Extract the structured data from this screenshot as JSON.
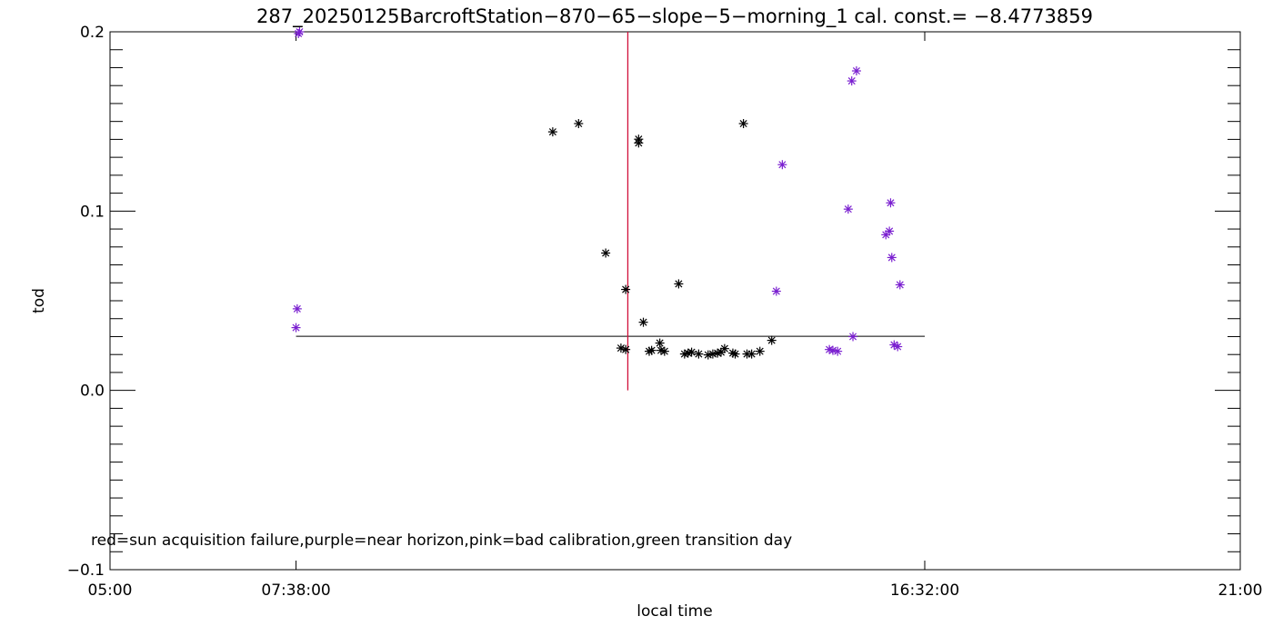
{
  "chart_data": {
    "type": "scatter",
    "title": "287_20250125BarcroftStation−870−65−slope−5−morning_1 cal. const.= −8.4773859",
    "xlabel": "local time",
    "ylabel": "tod",
    "x_range_hours": [
      5.0,
      21.0
    ],
    "ylim": [
      -0.1,
      0.2
    ],
    "x_ticks": [
      {
        "hours": 5.0,
        "label": "05:00"
      },
      {
        "hours": 7.6333,
        "label": "07:38:00"
      },
      {
        "hours": 16.5333,
        "label": "16:32:00"
      },
      {
        "hours": 21.0,
        "label": "21:00"
      }
    ],
    "y_ticks": [
      {
        "value": -0.1,
        "label": "−0.1"
      },
      {
        "value": 0.0,
        "label": "0.0"
      },
      {
        "value": 0.1,
        "label": "0.1"
      },
      {
        "value": 0.2,
        "label": "0.2"
      }
    ],
    "y_minor_step": 0.01,
    "note": "red=sun acquisition failure,purple=near horizon,pink=bad calibration,green transition day",
    "colors": {
      "normal": "#000000",
      "near_horizon": "#7a1fd0",
      "sun_failure": "#d0103a",
      "frame": "#000000"
    },
    "reference_line": {
      "y": 0.0302,
      "x_start_hours": 7.6333,
      "x_end_hours": 16.5333
    },
    "vertical_marker": {
      "x_hours": 12.33,
      "y_from": 0.0,
      "y_to": 0.2,
      "color": "#d0103a"
    },
    "points": [
      {
        "x": 7.667,
        "y": 0.199,
        "flag": "near_horizon"
      },
      {
        "x": 7.683,
        "y": 0.2,
        "flag": "near_horizon"
      },
      {
        "x": 7.65,
        "y": 0.0455,
        "flag": "near_horizon"
      },
      {
        "x": 7.633,
        "y": 0.035,
        "flag": "near_horizon"
      },
      {
        "x": 11.267,
        "y": 0.1442,
        "flag": "normal"
      },
      {
        "x": 11.633,
        "y": 0.1488,
        "flag": "normal"
      },
      {
        "x": 12.017,
        "y": 0.0766,
        "flag": "normal"
      },
      {
        "x": 12.233,
        "y": 0.0236,
        "flag": "normal"
      },
      {
        "x": 12.3,
        "y": 0.0228,
        "flag": "normal"
      },
      {
        "x": 12.3,
        "y": 0.0563,
        "flag": "normal"
      },
      {
        "x": 12.483,
        "y": 0.1401,
        "flag": "normal"
      },
      {
        "x": 12.483,
        "y": 0.138,
        "flag": "normal"
      },
      {
        "x": 12.55,
        "y": 0.038,
        "flag": "normal"
      },
      {
        "x": 12.633,
        "y": 0.0218,
        "flag": "normal"
      },
      {
        "x": 12.667,
        "y": 0.0223,
        "flag": "normal"
      },
      {
        "x": 12.783,
        "y": 0.0264,
        "flag": "normal"
      },
      {
        "x": 12.8,
        "y": 0.0223,
        "flag": "normal"
      },
      {
        "x": 12.85,
        "y": 0.0218,
        "flag": "normal"
      },
      {
        "x": 13.05,
        "y": 0.0594,
        "flag": "normal"
      },
      {
        "x": 13.133,
        "y": 0.0203,
        "flag": "normal"
      },
      {
        "x": 13.183,
        "y": 0.0208,
        "flag": "normal"
      },
      {
        "x": 13.233,
        "y": 0.0213,
        "flag": "normal"
      },
      {
        "x": 13.333,
        "y": 0.0203,
        "flag": "normal"
      },
      {
        "x": 13.467,
        "y": 0.0198,
        "flag": "normal"
      },
      {
        "x": 13.533,
        "y": 0.0203,
        "flag": "normal"
      },
      {
        "x": 13.6,
        "y": 0.0208,
        "flag": "normal"
      },
      {
        "x": 13.65,
        "y": 0.0213,
        "flag": "normal"
      },
      {
        "x": 13.7,
        "y": 0.0233,
        "flag": "normal"
      },
      {
        "x": 13.817,
        "y": 0.0208,
        "flag": "normal"
      },
      {
        "x": 13.85,
        "y": 0.0203,
        "flag": "normal"
      },
      {
        "x": 13.967,
        "y": 0.1488,
        "flag": "normal"
      },
      {
        "x": 14.017,
        "y": 0.0203,
        "flag": "normal"
      },
      {
        "x": 14.083,
        "y": 0.0203,
        "flag": "normal"
      },
      {
        "x": 14.2,
        "y": 0.0218,
        "flag": "normal"
      },
      {
        "x": 14.367,
        "y": 0.0279,
        "flag": "normal"
      },
      {
        "x": 14.433,
        "y": 0.0553,
        "flag": "near_horizon"
      },
      {
        "x": 14.517,
        "y": 0.1259,
        "flag": "near_horizon"
      },
      {
        "x": 15.183,
        "y": 0.0228,
        "flag": "near_horizon"
      },
      {
        "x": 15.233,
        "y": 0.0223,
        "flag": "near_horizon"
      },
      {
        "x": 15.3,
        "y": 0.0218,
        "flag": "near_horizon"
      },
      {
        "x": 15.45,
        "y": 0.1011,
        "flag": "near_horizon"
      },
      {
        "x": 15.5,
        "y": 0.1726,
        "flag": "near_horizon"
      },
      {
        "x": 15.517,
        "y": 0.03,
        "flag": "near_horizon"
      },
      {
        "x": 15.567,
        "y": 0.1782,
        "flag": "near_horizon"
      },
      {
        "x": 15.983,
        "y": 0.0868,
        "flag": "near_horizon"
      },
      {
        "x": 16.033,
        "y": 0.0888,
        "flag": "near_horizon"
      },
      {
        "x": 16.05,
        "y": 0.1046,
        "flag": "near_horizon"
      },
      {
        "x": 16.067,
        "y": 0.0741,
        "flag": "near_horizon"
      },
      {
        "x": 16.1,
        "y": 0.0254,
        "flag": "near_horizon"
      },
      {
        "x": 16.15,
        "y": 0.0244,
        "flag": "near_horizon"
      },
      {
        "x": 16.183,
        "y": 0.0589,
        "flag": "near_horizon"
      }
    ]
  }
}
